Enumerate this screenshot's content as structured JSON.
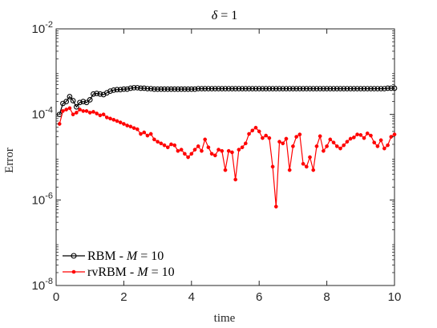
{
  "chart_data": {
    "type": "line",
    "title": "δ = 1",
    "xlabel": "time",
    "ylabel": "Error",
    "xlim": [
      0,
      10
    ],
    "ylim": [
      1e-08,
      0.01
    ],
    "yscale": "log",
    "xticks": [
      0,
      2,
      4,
      6,
      8,
      10
    ],
    "yticks": [
      {
        "base": "10",
        "exp": "-8",
        "value": 1e-08
      },
      {
        "base": "10",
        "exp": "-6",
        "value": 1e-06
      },
      {
        "base": "10",
        "exp": "-4",
        "value": 0.0001
      },
      {
        "base": "10",
        "exp": "-2",
        "value": 0.01
      }
    ],
    "grid": false,
    "legend_position": "bottom-left",
    "series": [
      {
        "name": "RBM - M = 10",
        "name_parts": {
          "prefix": "RBM - ",
          "var": "M",
          "suffix": " = 10"
        },
        "color": "#000000",
        "marker": "open-circle",
        "x": [
          0.1,
          0.2,
          0.3,
          0.4,
          0.5,
          0.6,
          0.7,
          0.8,
          0.9,
          1.0,
          1.1,
          1.2,
          1.3,
          1.4,
          1.5,
          1.6,
          1.7,
          1.8,
          1.9,
          2.0,
          2.1,
          2.2,
          2.3,
          2.4,
          2.5,
          2.6,
          2.7,
          2.8,
          2.9,
          3.0,
          3.1,
          3.2,
          3.3,
          3.4,
          3.5,
          3.6,
          3.7,
          3.8,
          3.9,
          4.0,
          4.1,
          4.2,
          4.3,
          4.4,
          4.5,
          4.6,
          4.7,
          4.8,
          4.9,
          5.0,
          5.1,
          5.2,
          5.3,
          5.4,
          5.5,
          5.6,
          5.7,
          5.8,
          5.9,
          6.0,
          6.1,
          6.2,
          6.3,
          6.4,
          6.5,
          6.6,
          6.7,
          6.8,
          6.9,
          7.0,
          7.1,
          7.2,
          7.3,
          7.4,
          7.5,
          7.6,
          7.7,
          7.8,
          7.9,
          8.0,
          8.1,
          8.2,
          8.3,
          8.4,
          8.5,
          8.6,
          8.7,
          8.8,
          8.9,
          9.0,
          9.1,
          9.2,
          9.3,
          9.4,
          9.5,
          9.6,
          9.7,
          9.8,
          9.9,
          10.0
        ],
        "y": [
          0.0001,
          0.00018,
          0.0002,
          0.00026,
          0.00021,
          0.00015,
          0.00019,
          0.0002,
          0.00019,
          0.00022,
          0.0003,
          0.00031,
          0.0003,
          0.00029,
          0.00032,
          0.00035,
          0.00037,
          0.00038,
          0.00038,
          0.00039,
          0.00039,
          0.00041,
          0.00042,
          0.00042,
          0.00041,
          0.00041,
          0.0004,
          0.0004,
          0.00039,
          0.00039,
          0.00039,
          0.00039,
          0.00039,
          0.00039,
          0.00039,
          0.00039,
          0.00039,
          0.00039,
          0.00039,
          0.00039,
          0.00039,
          0.0004,
          0.0004,
          0.0004,
          0.0004,
          0.0004,
          0.0004,
          0.0004,
          0.0004,
          0.0004,
          0.0004,
          0.0004,
          0.0004,
          0.0004,
          0.0004,
          0.0004,
          0.0004,
          0.0004,
          0.0004,
          0.0004,
          0.0004,
          0.0004,
          0.0004,
          0.0004,
          0.0004,
          0.0004,
          0.0004,
          0.0004,
          0.0004,
          0.0004,
          0.0004,
          0.0004,
          0.0004,
          0.0004,
          0.0004,
          0.0004,
          0.0004,
          0.0004,
          0.0004,
          0.0004,
          0.0004,
          0.0004,
          0.0004,
          0.0004,
          0.0004,
          0.0004,
          0.0004,
          0.0004,
          0.0004,
          0.0004,
          0.0004,
          0.0004,
          0.0004,
          0.0004,
          0.0004,
          0.0004,
          0.0004,
          0.00041,
          0.00041,
          0.00041
        ]
      },
      {
        "name": "rvRBM - M = 10",
        "name_parts": {
          "prefix": "rvRBM - ",
          "var": "M",
          "suffix": " = 10"
        },
        "color": "#ff0000",
        "marker": "filled-dot",
        "x": [
          0.1,
          0.2,
          0.3,
          0.4,
          0.5,
          0.6,
          0.7,
          0.8,
          0.9,
          1.0,
          1.1,
          1.2,
          1.3,
          1.4,
          1.5,
          1.6,
          1.7,
          1.8,
          1.9,
          2.0,
          2.1,
          2.2,
          2.3,
          2.4,
          2.5,
          2.6,
          2.7,
          2.8,
          2.9,
          3.0,
          3.1,
          3.2,
          3.3,
          3.4,
          3.5,
          3.6,
          3.7,
          3.8,
          3.9,
          4.0,
          4.1,
          4.2,
          4.3,
          4.4,
          4.5,
          4.6,
          4.7,
          4.8,
          4.9,
          5.0,
          5.1,
          5.2,
          5.3,
          5.4,
          5.5,
          5.6,
          5.7,
          5.8,
          5.9,
          6.0,
          6.1,
          6.2,
          6.3,
          6.4,
          6.5,
          6.6,
          6.7,
          6.8,
          6.9,
          7.0,
          7.1,
          7.2,
          7.3,
          7.4,
          7.5,
          7.6,
          7.7,
          7.8,
          7.9,
          8.0,
          8.1,
          8.2,
          8.3,
          8.4,
          8.5,
          8.6,
          8.7,
          8.8,
          8.9,
          9.0,
          9.1,
          9.2,
          9.3,
          9.4,
          9.5,
          9.6,
          9.7,
          9.8,
          9.9,
          10.0
        ],
        "y": [
          6e-05,
          0.00012,
          0.00013,
          0.00014,
          0.0001,
          0.00011,
          0.00013,
          0.00012,
          0.00012,
          0.00011,
          0.000115,
          0.000105,
          9.5e-05,
          0.0001,
          8.5e-05,
          8e-05,
          7.5e-05,
          7e-05,
          6.5e-05,
          6e-05,
          5.5e-05,
          5.2e-05,
          4.8e-05,
          4.5e-05,
          3.5e-05,
          3.8e-05,
          3.2e-05,
          3.5e-05,
          2.6e-05,
          2.3e-05,
          2.1e-05,
          1.9e-05,
          1.7e-05,
          2e-05,
          1.9e-05,
          1.4e-05,
          1.5e-05,
          1.2e-05,
          1e-05,
          1.2e-05,
          1.5e-05,
          1.8e-05,
          1.4e-05,
          2.6e-05,
          1.7e-05,
          1.2e-05,
          1.1e-05,
          1.5e-05,
          1.4e-05,
          5e-06,
          1.4e-05,
          1.3e-05,
          3e-06,
          1.5e-05,
          1.7e-05,
          2.1e-05,
          3.5e-05,
          4.2e-05,
          4.9e-05,
          4e-05,
          2.8e-05,
          3.2e-05,
          2.8e-05,
          6e-06,
          7e-07,
          2.3e-05,
          2.1e-05,
          2.7e-05,
          5e-06,
          1.8e-05,
          3e-05,
          3.4e-05,
          7e-06,
          6e-06,
          1e-05,
          5e-06,
          1.8e-05,
          3.1e-05,
          1.4e-05,
          1.8e-05,
          2.6e-05,
          2.2e-05,
          1.8e-05,
          1.6e-05,
          1.9e-05,
          2.3e-05,
          2.7e-05,
          2.9e-05,
          3.4e-05,
          3.3e-05,
          2.8e-05,
          3.6e-05,
          3.2e-05,
          2.2e-05,
          1.8e-05,
          2.5e-05,
          1.6e-05,
          1.9e-05,
          3e-05,
          3.4e-05
        ]
      }
    ]
  }
}
